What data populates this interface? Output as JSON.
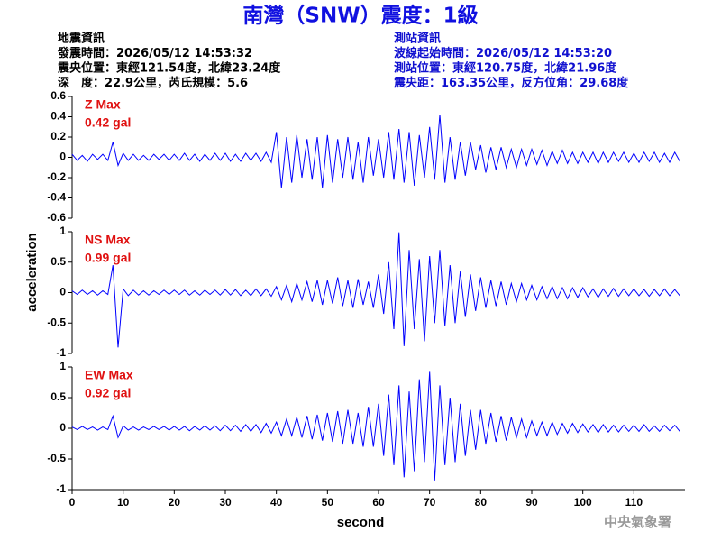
{
  "title": "南灣（SNW）震度：1級",
  "quake_info": [
    "地震資訊",
    "發震時間：2026/05/12 14:53:32",
    "震央位置：東經121.54度，北緯23.24度",
    "深　度：22.9公里，芮氏規模：5.6"
  ],
  "station_info": [
    "測站資訊",
    "波線起始時間：2026/05/12 14:53:20",
    "測站位置：東經120.75度，北緯21.96度",
    "震央距：163.35公里，反方位角：29.68度"
  ],
  "y_label": "acceleration",
  "x_label": "second",
  "footer": "中央氣象署",
  "chart_data": [
    {
      "type": "line",
      "color": "#0000ff",
      "annotations": [
        "Z Max",
        "0.42 gal"
      ],
      "xlim": [
        0,
        120
      ],
      "ylim": [
        -0.6,
        0.6
      ],
      "yticks": [
        -0.6,
        -0.4,
        -0.2,
        0,
        0.2,
        0.4,
        0.6
      ],
      "x": [
        0,
        1,
        2,
        3,
        4,
        5,
        6,
        7,
        8,
        9,
        10,
        11,
        12,
        13,
        14,
        15,
        16,
        17,
        18,
        19,
        20,
        21,
        22,
        23,
        24,
        25,
        26,
        27,
        28,
        29,
        30,
        31,
        32,
        33,
        34,
        35,
        36,
        37,
        38,
        39,
        40,
        41,
        42,
        43,
        44,
        45,
        46,
        47,
        48,
        49,
        50,
        51,
        52,
        53,
        54,
        55,
        56,
        57,
        58,
        59,
        60,
        61,
        62,
        63,
        64,
        65,
        66,
        67,
        68,
        69,
        70,
        71,
        72,
        73,
        74,
        75,
        76,
        77,
        78,
        79,
        80,
        81,
        82,
        83,
        84,
        85,
        86,
        87,
        88,
        89,
        90,
        91,
        92,
        93,
        94,
        95,
        96,
        97,
        98,
        99,
        100,
        101,
        102,
        103,
        104,
        105,
        106,
        107,
        108,
        109,
        110,
        111,
        112,
        113,
        114,
        115,
        116,
        117,
        118,
        119
      ],
      "values": [
        0.03,
        -0.03,
        0.02,
        -0.04,
        0.03,
        -0.02,
        0.03,
        -0.03,
        0.15,
        -0.08,
        0.04,
        -0.03,
        0.03,
        -0.03,
        0.02,
        -0.03,
        0.03,
        -0.02,
        0.03,
        -0.03,
        0.03,
        -0.03,
        0.04,
        -0.03,
        0.03,
        -0.04,
        0.03,
        -0.03,
        0.04,
        -0.03,
        0.04,
        -0.04,
        0.03,
        -0.04,
        0.04,
        -0.03,
        0.04,
        -0.04,
        0.05,
        -0.05,
        0.25,
        -0.3,
        0.2,
        -0.25,
        0.22,
        -0.2,
        0.18,
        -0.22,
        0.2,
        -0.3,
        0.22,
        -0.25,
        0.18,
        -0.2,
        0.2,
        -0.22,
        0.15,
        -0.25,
        0.2,
        -0.18,
        0.18,
        -0.2,
        0.25,
        -0.22,
        0.28,
        -0.25,
        0.25,
        -0.28,
        0.22,
        -0.2,
        0.3,
        -0.22,
        0.42,
        -0.25,
        0.2,
        -0.22,
        0.15,
        -0.18,
        0.15,
        -0.12,
        0.12,
        -0.15,
        0.1,
        -0.12,
        0.1,
        -0.1,
        0.08,
        -0.1,
        0.08,
        -0.08,
        0.08,
        -0.07,
        0.07,
        -0.08,
        0.06,
        -0.06,
        0.07,
        -0.06,
        0.05,
        -0.06,
        0.05,
        -0.05,
        0.05,
        -0.06,
        0.05,
        -0.05,
        0.05,
        -0.04,
        0.05,
        -0.05,
        0.04,
        -0.05,
        0.05,
        -0.04,
        0.05,
        -0.05,
        0.04,
        -0.05,
        0.05,
        -0.04
      ]
    },
    {
      "type": "line",
      "color": "#0000ff",
      "annotations": [
        "NS Max",
        "0.99 gal"
      ],
      "xlim": [
        0,
        120
      ],
      "ylim": [
        -1,
        1
      ],
      "yticks": [
        -1,
        -0.5,
        0,
        0.5,
        1
      ],
      "x": [
        0,
        1,
        2,
        3,
        4,
        5,
        6,
        7,
        8,
        9,
        10,
        11,
        12,
        13,
        14,
        15,
        16,
        17,
        18,
        19,
        20,
        21,
        22,
        23,
        24,
        25,
        26,
        27,
        28,
        29,
        30,
        31,
        32,
        33,
        34,
        35,
        36,
        37,
        38,
        39,
        40,
        41,
        42,
        43,
        44,
        45,
        46,
        47,
        48,
        49,
        50,
        51,
        52,
        53,
        54,
        55,
        56,
        57,
        58,
        59,
        60,
        61,
        62,
        63,
        64,
        65,
        66,
        67,
        68,
        69,
        70,
        71,
        72,
        73,
        74,
        75,
        76,
        77,
        78,
        79,
        80,
        81,
        82,
        83,
        84,
        85,
        86,
        87,
        88,
        89,
        90,
        91,
        92,
        93,
        94,
        95,
        96,
        97,
        98,
        99,
        100,
        101,
        102,
        103,
        104,
        105,
        106,
        107,
        108,
        109,
        110,
        111,
        112,
        113,
        114,
        115,
        116,
        117,
        118,
        119
      ],
      "values": [
        0.03,
        -0.03,
        0.04,
        -0.03,
        0.03,
        -0.04,
        0.03,
        -0.03,
        0.45,
        -0.9,
        0.06,
        -0.05,
        0.04,
        -0.04,
        0.03,
        -0.04,
        0.03,
        -0.03,
        0.04,
        -0.03,
        0.04,
        -0.03,
        0.04,
        -0.04,
        0.03,
        -0.04,
        0.04,
        -0.03,
        0.04,
        -0.04,
        0.05,
        -0.04,
        0.05,
        -0.05,
        0.04,
        -0.05,
        0.06,
        -0.05,
        0.06,
        -0.06,
        0.1,
        -0.12,
        0.12,
        -0.15,
        0.15,
        -0.12,
        0.18,
        -0.15,
        0.2,
        -0.2,
        0.2,
        -0.18,
        0.25,
        -0.22,
        0.2,
        -0.25,
        0.22,
        -0.2,
        0.18,
        -0.25,
        0.3,
        -0.35,
        0.5,
        -0.6,
        0.99,
        -0.88,
        0.7,
        -0.6,
        0.55,
        -0.8,
        0.6,
        -0.5,
        0.7,
        -0.55,
        0.45,
        -0.5,
        0.35,
        -0.4,
        0.3,
        -0.3,
        0.25,
        -0.25,
        0.2,
        -0.22,
        0.18,
        -0.2,
        0.15,
        -0.15,
        0.15,
        -0.12,
        0.12,
        -0.12,
        0.1,
        -0.1,
        0.1,
        -0.1,
        0.08,
        -0.1,
        0.08,
        -0.08,
        0.08,
        -0.07,
        0.06,
        -0.08,
        0.06,
        -0.06,
        0.07,
        -0.06,
        0.06,
        -0.05,
        0.06,
        -0.05,
        0.05,
        -0.06,
        0.05,
        -0.05,
        0.06,
        -0.05,
        0.05,
        -0.05
      ]
    },
    {
      "type": "line",
      "color": "#0000ff",
      "annotations": [
        "EW Max",
        "0.92 gal"
      ],
      "xlim": [
        0,
        120
      ],
      "ylim": [
        -1,
        1
      ],
      "yticks": [
        -1,
        -0.5,
        0,
        0.5,
        1
      ],
      "xticks": [
        0,
        10,
        20,
        30,
        40,
        50,
        60,
        70,
        80,
        90,
        100,
        110
      ],
      "x": [
        0,
        1,
        2,
        3,
        4,
        5,
        6,
        7,
        8,
        9,
        10,
        11,
        12,
        13,
        14,
        15,
        16,
        17,
        18,
        19,
        20,
        21,
        22,
        23,
        24,
        25,
        26,
        27,
        28,
        29,
        30,
        31,
        32,
        33,
        34,
        35,
        36,
        37,
        38,
        39,
        40,
        41,
        42,
        43,
        44,
        45,
        46,
        47,
        48,
        49,
        50,
        51,
        52,
        53,
        54,
        55,
        56,
        57,
        58,
        59,
        60,
        61,
        62,
        63,
        64,
        65,
        66,
        67,
        68,
        69,
        70,
        71,
        72,
        73,
        74,
        75,
        76,
        77,
        78,
        79,
        80,
        81,
        82,
        83,
        84,
        85,
        86,
        87,
        88,
        89,
        90,
        91,
        92,
        93,
        94,
        95,
        96,
        97,
        98,
        99,
        100,
        101,
        102,
        103,
        104,
        105,
        106,
        107,
        108,
        109,
        110,
        111,
        112,
        113,
        114,
        115,
        116,
        117,
        118,
        119
      ],
      "values": [
        0.02,
        -0.02,
        0.03,
        -0.02,
        0.02,
        -0.03,
        0.02,
        -0.02,
        0.2,
        -0.15,
        0.04,
        -0.03,
        0.02,
        -0.03,
        0.02,
        -0.02,
        0.03,
        -0.02,
        0.03,
        -0.03,
        0.03,
        -0.03,
        0.03,
        -0.04,
        0.03,
        -0.03,
        0.04,
        -0.03,
        0.04,
        -0.04,
        0.05,
        -0.04,
        0.05,
        -0.05,
        0.06,
        -0.05,
        0.06,
        -0.07,
        0.08,
        -0.08,
        0.1,
        -0.12,
        0.15,
        -0.12,
        0.18,
        -0.15,
        0.2,
        -0.18,
        0.22,
        -0.2,
        0.25,
        -0.22,
        0.28,
        -0.25,
        0.3,
        -0.25,
        0.25,
        -0.3,
        0.35,
        -0.3,
        0.4,
        -0.45,
        0.55,
        -0.6,
        0.7,
        -0.8,
        0.6,
        -0.7,
        0.8,
        -0.55,
        0.92,
        -0.85,
        0.7,
        -0.6,
        0.5,
        -0.55,
        0.4,
        -0.45,
        0.3,
        -0.35,
        0.3,
        -0.25,
        0.25,
        -0.22,
        0.2,
        -0.2,
        0.18,
        -0.15,
        0.15,
        -0.15,
        0.12,
        -0.12,
        0.1,
        -0.12,
        0.1,
        -0.1,
        0.08,
        -0.08,
        0.08,
        -0.07,
        0.07,
        -0.06,
        0.06,
        -0.07,
        0.06,
        -0.06,
        0.05,
        -0.06,
        0.05,
        -0.05,
        0.05,
        -0.05,
        0.06,
        -0.05,
        0.04,
        -0.05,
        0.05,
        -0.04,
        0.05,
        -0.05
      ]
    }
  ]
}
